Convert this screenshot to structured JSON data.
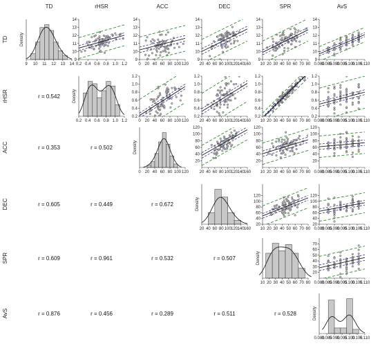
{
  "chart_data": {
    "type": "pairs_matrix",
    "variables": [
      "TD",
      "rHSR",
      "ACC",
      "DEC",
      "SPR",
      "AvS"
    ],
    "density_label": "Density",
    "correlations": {
      "rHSR_TD": "r = 0.542",
      "ACC_TD": "r = 0.353",
      "ACC_rHSR": "r = 0.502",
      "DEC_TD": "r = 0.605",
      "DEC_rHSR": "r = 0.449",
      "DEC_ACC": "r = 0.672",
      "SPR_TD": "r = 0.609",
      "SPR_rHSR": "r = 0.961",
      "SPR_ACC": "r = 0.532",
      "SPR_DEC": "r = 0.507",
      "AvS_TD": "r = 0.876",
      "AvS_rHSR": "r = 0.456",
      "AvS_ACC": "r = 0.289",
      "AvS_DEC": "r = 0.511",
      "AvS_SPR": "r = 0.528"
    },
    "axes": {
      "TD": {
        "range": [
          9,
          14
        ],
        "ticks": [
          "9",
          "10",
          "11",
          "12",
          "13",
          "14"
        ],
        "row_ticks": [
          "9",
          "10",
          "11",
          "12",
          "13",
          "14"
        ]
      },
      "rHSR": {
        "range": [
          0.2,
          1.2
        ],
        "ticks": [
          "0.2",
          "0.4",
          "0.6",
          "0.8",
          "1.0",
          "1.2"
        ],
        "row_ticks": [
          "0.2",
          "0.4",
          "0.6",
          "0.8",
          "1.0",
          "1.2"
        ]
      },
      "ACC": {
        "range": [
          0,
          120
        ],
        "ticks": [
          "0",
          "20",
          "40",
          "60",
          "80",
          "100",
          "120"
        ],
        "row_ticks": [
          "20",
          "40",
          "60",
          "80",
          "100",
          "120"
        ]
      },
      "DEC": {
        "range": [
          20,
          160
        ],
        "ticks": [
          "20",
          "40",
          "60",
          "80",
          "100",
          "120",
          "140",
          "160"
        ],
        "row_ticks": [
          "20",
          "40",
          "60",
          "80",
          "100",
          "120"
        ]
      },
      "SPR": {
        "range": [
          10,
          80
        ],
        "ticks": [
          "10",
          "20",
          "30",
          "40",
          "50",
          "60",
          "70",
          "80"
        ],
        "row_ticks": [
          "20",
          "30",
          "40",
          "50",
          "60",
          "70"
        ]
      },
      "AvS": {
        "range": [
          0.08,
          0.11
        ],
        "ticks": [
          "0.080",
          "0.085",
          "0.090",
          "0.095",
          "0.100",
          "0.105",
          "0.110"
        ]
      }
    },
    "histograms": {
      "TD": {
        "bin_edges": [
          9.5,
          10,
          10.5,
          11,
          11.5,
          12,
          12.5,
          13,
          13.5
        ],
        "density": [
          0.1,
          0.3,
          0.55,
          0.6,
          0.5,
          0.3,
          0.15,
          0.07
        ]
      },
      "rHSR": {
        "bin_edges": [
          0.3,
          0.4,
          0.5,
          0.6,
          0.7,
          0.8,
          0.9,
          1.0,
          1.1
        ],
        "density": [
          1.0,
          1.5,
          1.4,
          0.8,
          1.1,
          1.5,
          1.3,
          0.5
        ]
      },
      "ACC": {
        "bin_edges": [
          20,
          30,
          40,
          50,
          60,
          70,
          80,
          90,
          100
        ],
        "density": [
          0.002,
          0.005,
          0.012,
          0.022,
          0.03,
          0.02,
          0.01,
          0.003
        ]
      },
      "DEC": {
        "bin_edges": [
          40,
          60,
          80,
          100,
          120,
          140
        ],
        "density": [
          0.006,
          0.018,
          0.014,
          0.006,
          0.002
        ]
      },
      "SPR": {
        "bin_edges": [
          15,
          25,
          35,
          45,
          55,
          65,
          75
        ],
        "density": [
          0.02,
          0.028,
          0.022,
          0.027,
          0.02,
          0.008
        ]
      },
      "AvS": {
        "bin_edges": [
          0.086,
          0.09,
          0.094,
          0.098,
          0.102,
          0.106
        ],
        "density": [
          120,
          20,
          20,
          125,
          15
        ]
      }
    },
    "scatter_panels": [
      {
        "x": "rHSR",
        "y": "TD",
        "slope": 1.6,
        "intercept": 10.1,
        "ci": 0.3,
        "pi": 1.3
      },
      {
        "x": "ACC",
        "y": "TD",
        "slope": 0.012,
        "intercept": 10.2,
        "ci": 0.35,
        "pi": 1.6
      },
      {
        "x": "DEC",
        "y": "TD",
        "slope": 0.02,
        "intercept": 9.6,
        "ci": 0.35,
        "pi": 1.5
      },
      {
        "x": "SPR",
        "y": "TD",
        "slope": 0.04,
        "intercept": 9.5,
        "ci": 0.3,
        "pi": 1.4
      },
      {
        "x": "AvS",
        "y": "TD",
        "slope": 80,
        "intercept": 3.3,
        "ci": 0.25,
        "pi": 0.9
      },
      {
        "x": "ACC",
        "y": "rHSR",
        "slope": 0.006,
        "intercept": 0.22,
        "ci": 0.06,
        "pi": 0.4
      },
      {
        "x": "DEC",
        "y": "rHSR",
        "slope": 0.005,
        "intercept": 0.22,
        "ci": 0.07,
        "pi": 0.45
      },
      {
        "x": "SPR",
        "y": "rHSR",
        "slope": 0.016,
        "intercept": 0.0,
        "ci": 0.02,
        "pi": 0.12
      },
      {
        "x": "AvS",
        "y": "rHSR",
        "slope": 10,
        "intercept": -0.3,
        "ci": 0.06,
        "pi": 0.4
      },
      {
        "x": "DEC",
        "y": "ACC",
        "slope": 0.55,
        "intercept": 25,
        "ci": 8,
        "pi": 30
      },
      {
        "x": "SPR",
        "y": "ACC",
        "slope": 0.6,
        "intercept": 35,
        "ci": 8,
        "pi": 32
      },
      {
        "x": "AvS",
        "y": "ACC",
        "slope": 400,
        "intercept": 30,
        "ci": 8,
        "pi": 32
      },
      {
        "x": "SPR",
        "y": "DEC",
        "slope": 0.9,
        "intercept": 40,
        "ci": 8,
        "pi": 35
      },
      {
        "x": "AvS",
        "y": "DEC",
        "slope": 1000,
        "intercept": -15,
        "ci": 8,
        "pi": 35
      },
      {
        "x": "AvS",
        "y": "SPR",
        "slope": 600,
        "intercept": -20,
        "ci": 5,
        "pi": 20
      }
    ]
  }
}
